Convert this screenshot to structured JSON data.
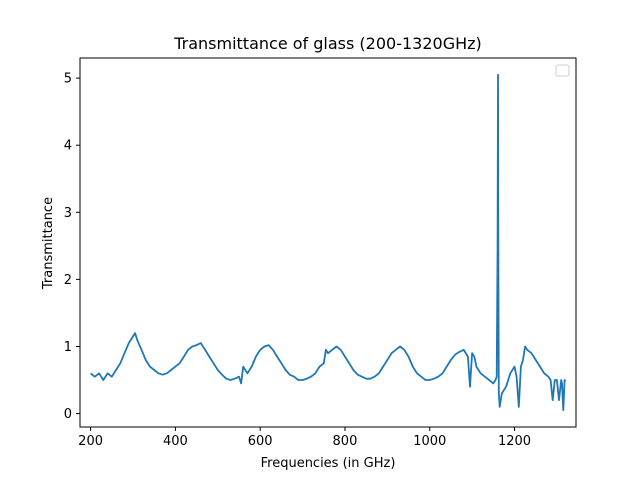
{
  "chart_data": {
    "type": "line",
    "title": "Transmittance of glass (200-1320GHz)",
    "xlabel": "Frequencies (in GHz)",
    "ylabel": "Transmittance",
    "xlim": [
      175,
      1345
    ],
    "ylim": [
      -0.2,
      5.3
    ],
    "xticks": [
      200,
      400,
      600,
      800,
      1000,
      1200
    ],
    "yticks": [
      0,
      1,
      2,
      3,
      4,
      5
    ],
    "grid": false,
    "legend": {
      "placement": "top-right",
      "entries": []
    },
    "series": [
      {
        "color": "#1f77b4",
        "x": [
          200,
          210,
          220,
          230,
          240,
          250,
          260,
          270,
          280,
          290,
          300,
          305,
          310,
          320,
          330,
          340,
          350,
          360,
          370,
          380,
          390,
          400,
          410,
          420,
          430,
          440,
          450,
          460,
          465,
          470,
          480,
          490,
          500,
          510,
          520,
          530,
          540,
          550,
          555,
          560,
          565,
          570,
          580,
          590,
          600,
          610,
          620,
          630,
          640,
          650,
          660,
          670,
          680,
          690,
          700,
          710,
          720,
          730,
          740,
          750,
          755,
          760,
          770,
          780,
          790,
          800,
          810,
          820,
          830,
          840,
          850,
          860,
          870,
          880,
          890,
          900,
          910,
          920,
          930,
          940,
          950,
          960,
          970,
          980,
          990,
          1000,
          1010,
          1020,
          1030,
          1040,
          1050,
          1060,
          1070,
          1080,
          1090,
          1095,
          1100,
          1105,
          1110,
          1120,
          1130,
          1140,
          1150,
          1155,
          1158,
          1160,
          1161,
          1162,
          1163,
          1165,
          1170,
          1180,
          1190,
          1200,
          1205,
          1210,
          1215,
          1220,
          1225,
          1230,
          1240,
          1250,
          1260,
          1270,
          1280,
          1285,
          1290,
          1295,
          1300,
          1305,
          1310,
          1312,
          1315,
          1318,
          1320
        ],
        "y": [
          0.6,
          0.55,
          0.6,
          0.5,
          0.6,
          0.55,
          0.65,
          0.75,
          0.9,
          1.05,
          1.15,
          1.2,
          1.1,
          0.95,
          0.8,
          0.7,
          0.65,
          0.6,
          0.58,
          0.6,
          0.65,
          0.7,
          0.75,
          0.85,
          0.95,
          1.0,
          1.02,
          1.05,
          1.0,
          0.95,
          0.85,
          0.75,
          0.65,
          0.58,
          0.52,
          0.5,
          0.52,
          0.55,
          0.45,
          0.7,
          0.65,
          0.6,
          0.7,
          0.85,
          0.95,
          1.0,
          1.02,
          0.95,
          0.85,
          0.75,
          0.65,
          0.58,
          0.55,
          0.5,
          0.5,
          0.52,
          0.55,
          0.6,
          0.7,
          0.75,
          0.95,
          0.9,
          0.95,
          1.0,
          0.95,
          0.85,
          0.75,
          0.65,
          0.58,
          0.55,
          0.52,
          0.52,
          0.55,
          0.6,
          0.7,
          0.8,
          0.9,
          0.95,
          1.0,
          0.95,
          0.85,
          0.7,
          0.6,
          0.55,
          0.5,
          0.5,
          0.52,
          0.55,
          0.6,
          0.7,
          0.8,
          0.88,
          0.92,
          0.95,
          0.85,
          0.4,
          0.9,
          0.85,
          0.7,
          0.6,
          0.55,
          0.5,
          0.45,
          0.5,
          0.55,
          2.5,
          5.05,
          2.05,
          0.3,
          0.1,
          0.3,
          0.4,
          0.6,
          0.7,
          0.55,
          0.1,
          0.7,
          0.8,
          1.0,
          0.95,
          0.9,
          0.8,
          0.7,
          0.6,
          0.55,
          0.5,
          0.2,
          0.5,
          0.5,
          0.2,
          0.5,
          0.45,
          0.05,
          0.5,
          0.48
        ]
      }
    ]
  }
}
